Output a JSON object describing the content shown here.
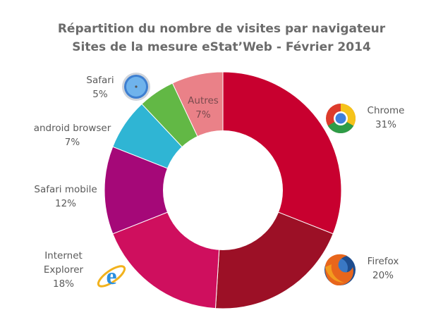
{
  "chart_data": {
    "type": "pie",
    "donut": true,
    "title": "Répartition du nombre de visites par navigateur",
    "subtitle": "Sites de la mesure eStat’Web - Février 2014",
    "unit": "%",
    "slices": [
      {
        "label": "Chrome",
        "value": 31,
        "value_label": "31%",
        "color": "#c8002f",
        "icon": "chrome-icon"
      },
      {
        "label": "Firefox",
        "value": 20,
        "value_label": "20%",
        "color": "#9c1026",
        "icon": "firefox-icon"
      },
      {
        "label": "Internet Explorer",
        "label_lines": [
          "Internet",
          "Explorer"
        ],
        "value": 18,
        "value_label": "18%",
        "color": "#cf0f5e",
        "icon": "internet-explorer-icon"
      },
      {
        "label": "Safari mobile",
        "value": 12,
        "value_label": "12%",
        "color": "#a50878",
        "icon": null
      },
      {
        "label": "android browser",
        "value": 7,
        "value_label": "7%",
        "color": "#2fb5d4",
        "icon": null
      },
      {
        "label": "Safari",
        "value": 5,
        "value_label": "5%",
        "color": "#62b845",
        "icon": "safari-icon"
      },
      {
        "label": "Autres",
        "value": 7,
        "value_label": "7%",
        "color": "#ea8188",
        "icon": null
      }
    ]
  }
}
